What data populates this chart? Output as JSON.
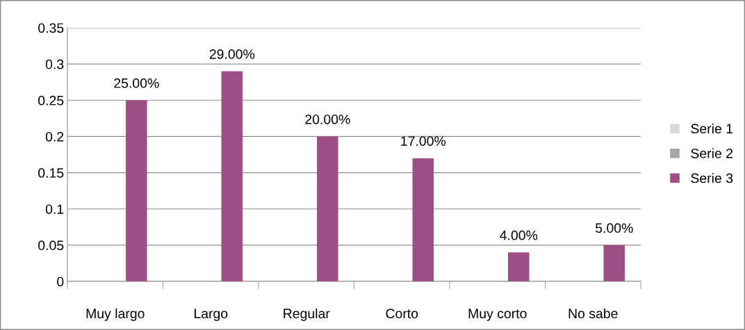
{
  "chart_data": {
    "type": "bar",
    "categories": [
      "Muy largo",
      "Largo",
      "Regular",
      "Corto",
      "Muy corto",
      "No sabe"
    ],
    "series": [
      {
        "name": "Serie 1",
        "color": "#d9d9d9",
        "values": [
          null,
          null,
          null,
          null,
          null,
          null
        ]
      },
      {
        "name": "Serie 2",
        "color": "#a6a6a6",
        "values": [
          null,
          null,
          null,
          null,
          null,
          null
        ]
      },
      {
        "name": "Serie 3",
        "color": "#9e5086",
        "values": [
          0.25,
          0.29,
          0.2,
          0.17,
          0.04,
          0.05
        ],
        "value_labels": [
          "25.00%",
          "29.00%",
          "20.00%",
          "17.00%",
          "4.00%",
          "5.00%"
        ]
      }
    ],
    "ylim": [
      0,
      0.35
    ],
    "yticks": [
      0,
      0.05,
      0.1,
      0.15,
      0.2,
      0.25,
      0.3,
      0.35
    ],
    "grid": "y",
    "legend": "right"
  }
}
